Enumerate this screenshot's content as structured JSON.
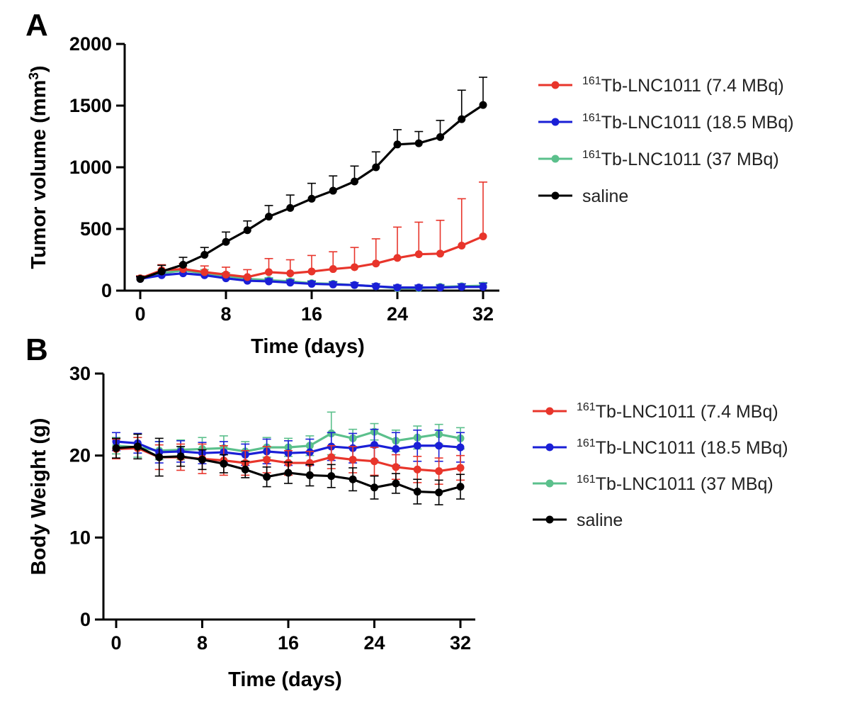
{
  "chart_data": [
    {
      "panel": "A",
      "type": "line",
      "ylabel": "Tumor volume (mm3)",
      "ylabel_parts": {
        "base": "Tumor volume (mm",
        "sup": "3",
        "tail": ")"
      },
      "xlabel": "Time (days)",
      "xlim": [
        0,
        32
      ],
      "ylim": [
        0,
        2000
      ],
      "xticks": [
        0,
        8,
        16,
        24,
        32
      ],
      "yticks": [
        0,
        500,
        1000,
        1500,
        2000
      ],
      "grid": false,
      "legend_position": "right",
      "x": [
        0,
        2,
        4,
        6,
        8,
        10,
        12,
        14,
        16,
        18,
        20,
        22,
        24,
        26,
        28,
        30,
        32
      ],
      "series": [
        {
          "name": "161Tb-LNC1011 (7.4 MBq)",
          "color": "#e8352b",
          "values": [
            100,
            165,
            175,
            150,
            130,
            110,
            150,
            140,
            155,
            175,
            190,
            220,
            265,
            295,
            300,
            365,
            440
          ],
          "error": [
            20,
            45,
            45,
            50,
            60,
            60,
            110,
            110,
            130,
            140,
            160,
            200,
            250,
            260,
            270,
            380,
            440
          ]
        },
        {
          "name": "161Tb-LNC1011 (18.5 MBq)",
          "color": "#1a1fd6",
          "values": [
            95,
            125,
            140,
            125,
            100,
            80,
            75,
            65,
            55,
            50,
            45,
            35,
            25,
            25,
            25,
            30,
            30
          ],
          "error": [
            15,
            25,
            30,
            25,
            20,
            20,
            20,
            20,
            20,
            20,
            20,
            20,
            20,
            20,
            20,
            25,
            30
          ]
        },
        {
          "name": "161Tb-LNC1011 (37 MBq)",
          "color": "#5bc08c",
          "values": [
            100,
            140,
            165,
            140,
            120,
            95,
            85,
            75,
            60,
            55,
            45,
            35,
            20,
            20,
            30,
            35,
            40
          ],
          "error": [
            15,
            30,
            35,
            30,
            25,
            25,
            20,
            20,
            20,
            20,
            20,
            20,
            15,
            15,
            20,
            20,
            25
          ]
        },
        {
          "name": "saline",
          "color": "#000000",
          "values": [
            95,
            155,
            210,
            290,
            395,
            490,
            600,
            670,
            745,
            810,
            885,
            1000,
            1185,
            1195,
            1245,
            1390,
            1505
          ],
          "error": [
            20,
            50,
            60,
            60,
            80,
            75,
            90,
            105,
            125,
            120,
            125,
            125,
            120,
            95,
            135,
            235,
            225
          ]
        }
      ]
    },
    {
      "panel": "B",
      "type": "line",
      "ylabel": "Body Weight (g)",
      "xlabel": "Time (days)",
      "xlim": [
        0,
        32
      ],
      "ylim": [
        0,
        30
      ],
      "xticks": [
        0,
        8,
        16,
        24,
        32
      ],
      "yticks": [
        0,
        10,
        20,
        30
      ],
      "grid": false,
      "legend_position": "right",
      "x": [
        0,
        2,
        4,
        6,
        8,
        10,
        12,
        14,
        16,
        18,
        20,
        22,
        24,
        26,
        28,
        30,
        32
      ],
      "series": [
        {
          "name": "161Tb-LNC1011 (7.4 MBq)",
          "color": "#e8352b",
          "values": [
            20.8,
            20.9,
            19.8,
            19.8,
            19.6,
            19.4,
            19.1,
            19.5,
            19.1,
            19.1,
            19.8,
            19.5,
            19.3,
            18.6,
            18.3,
            18.1,
            18.5
          ],
          "error": [
            1.2,
            1.3,
            1.5,
            1.6,
            1.8,
            1.8,
            1.5,
            1.6,
            1.5,
            1.4,
            1.4,
            1.6,
            1.7,
            1.5,
            1.6,
            1.6,
            1.5
          ]
        },
        {
          "name": "161Tb-LNC1011 (18.5 MBq)",
          "color": "#1a1fd6",
          "values": [
            21.7,
            21.5,
            20.4,
            20.5,
            20.3,
            20.4,
            20.1,
            20.5,
            20.3,
            20.4,
            21.1,
            20.9,
            21.3,
            20.8,
            21.2,
            21.2,
            21.0
          ],
          "error": [
            1.1,
            1.2,
            1.3,
            1.3,
            1.3,
            1.3,
            1.3,
            1.5,
            1.5,
            1.6,
            1.7,
            1.8,
            1.9,
            2.0,
            1.9,
            1.9,
            1.8
          ]
        },
        {
          "name": "161Tb-LNC1011 (37 MBq)",
          "color": "#5bc08c",
          "values": [
            21.2,
            21.0,
            20.6,
            20.7,
            20.8,
            20.9,
            20.5,
            21.0,
            21.0,
            21.2,
            22.7,
            22.1,
            22.9,
            21.8,
            22.2,
            22.6,
            22.1
          ],
          "error": [
            1.0,
            1.2,
            1.1,
            1.2,
            1.4,
            1.5,
            1.2,
            1.2,
            1.1,
            1.2,
            2.6,
            1.1,
            1.0,
            1.3,
            1.4,
            1.2,
            1.3
          ]
        },
        {
          "name": "saline",
          "color": "#000000",
          "values": [
            20.9,
            21.1,
            19.8,
            19.9,
            19.5,
            19.0,
            18.3,
            17.4,
            17.9,
            17.6,
            17.5,
            17.1,
            16.1,
            16.6,
            15.6,
            15.5,
            16.2
          ],
          "error": [
            1.2,
            1.5,
            2.3,
            1.2,
            1.2,
            1.1,
            1.0,
            1.2,
            1.3,
            1.3,
            1.4,
            1.4,
            1.4,
            1.2,
            1.5,
            1.5,
            1.5
          ]
        }
      ]
    }
  ]
}
